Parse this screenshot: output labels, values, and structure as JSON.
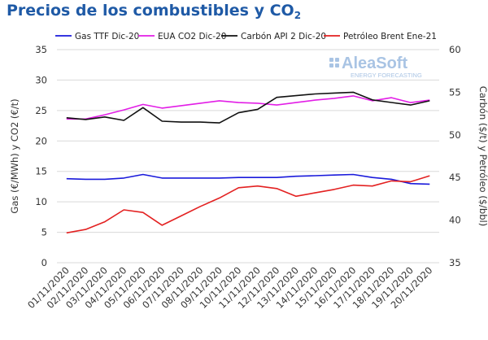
{
  "title": {
    "text": "Precios de los combustibles y CO",
    "sub": "2"
  },
  "watermark": {
    "name": "AleaSoft",
    "tagline": "ENERGY FORECASTING"
  },
  "chart_data": {
    "type": "line",
    "x": [
      "01/11/2020",
      "02/11/2020",
      "03/11/2020",
      "04/11/2020",
      "05/11/2020",
      "06/11/2020",
      "07/11/2020",
      "08/11/2020",
      "09/11/2020",
      "10/11/2020",
      "11/11/2020",
      "12/11/2020",
      "13/11/2020",
      "14/11/2020",
      "15/11/2020",
      "16/11/2020",
      "17/11/2020",
      "18/11/2020",
      "19/11/2020",
      "20/11/2020"
    ],
    "y_left": {
      "label": "Gas (€/MWh) y CO2 (€/t)",
      "range": [
        0,
        35
      ],
      "ticks": [
        "0",
        "5",
        "10",
        "15",
        "20",
        "25",
        "30",
        "35"
      ]
    },
    "y_right": {
      "label": "Carbón ($/t) y Petróleo ($/bbl)",
      "range": [
        35,
        60
      ],
      "ticks": [
        "35",
        "40",
        "45",
        "50",
        "55",
        "60"
      ]
    },
    "grid": "horizontal",
    "legend_position": "top",
    "series": [
      {
        "name": "Gas TTF Dic-20",
        "axis": "left",
        "color": "#1a1adb",
        "values": [
          13.8,
          13.7,
          13.7,
          13.9,
          14.5,
          13.9,
          13.9,
          13.9,
          13.9,
          14.0,
          14.0,
          14.0,
          14.2,
          14.3,
          14.4,
          14.5,
          14.0,
          13.7,
          13.0,
          12.9
        ]
      },
      {
        "name": "EUA CO2 Dic-20",
        "axis": "left",
        "color": "#e21ee6",
        "values": [
          23.6,
          23.6,
          24.3,
          25.1,
          26.0,
          25.4,
          25.8,
          26.2,
          26.6,
          26.3,
          26.2,
          25.9,
          26.3,
          26.7,
          27.0,
          27.4,
          26.6,
          27.1,
          26.3,
          26.7
        ]
      },
      {
        "name": "Carbón API 2 Dic-20",
        "axis": "right",
        "color": "#111111",
        "values": [
          52.0,
          51.8,
          52.1,
          51.7,
          53.2,
          51.6,
          51.5,
          51.5,
          51.4,
          52.6,
          53.0,
          54.4,
          54.6,
          54.8,
          54.9,
          55.0,
          54.1,
          53.8,
          53.5,
          54.0
        ]
      },
      {
        "name": "Petróleo Brent Ene-21",
        "axis": "right",
        "color": "#e32121",
        "values": [
          38.5,
          38.9,
          39.8,
          41.2,
          40.9,
          39.4,
          40.5,
          41.6,
          42.6,
          43.8,
          44.0,
          43.7,
          42.8,
          43.2,
          43.6,
          44.1,
          44.0,
          44.6,
          44.5,
          45.2
        ]
      }
    ]
  }
}
